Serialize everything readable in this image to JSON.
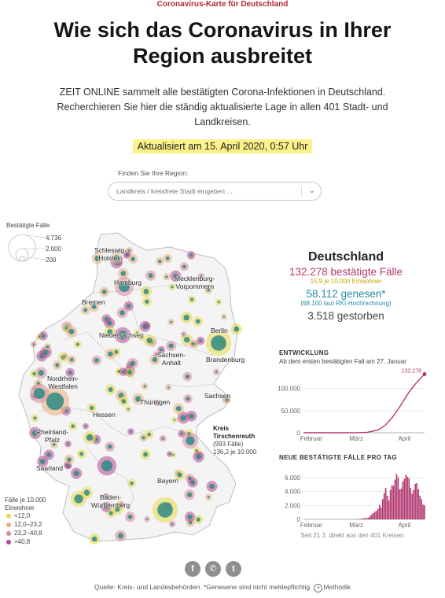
{
  "kicker": "Coronavirus-Karte für Deutschland",
  "headline": {
    "line1": "Wie sich das Coronavirus in Ihrer",
    "line2": "Region ausbreitet"
  },
  "intro": {
    "line1": "ZEIT ONLINE sammelt alle bestätigten Corona-Infektionen in Deutschland.",
    "line2": "Recherchieren Sie hier die ständig aktualisierte Lage in allen 401 Stadt- und",
    "line3": "Landkreisen."
  },
  "updated": "Aktualisiert am 15. April 2020, 0:57 Uhr",
  "search": {
    "label": "Finden Sie Ihre Region:",
    "placeholder": "Landkreis / kreisfreie Stadt eingeben ...",
    "chevron_icon": "chevron-down-icon"
  },
  "size_legend": {
    "title": "Bestätigte Fälle",
    "values": [
      "4.736",
      "2.000",
      "200"
    ]
  },
  "states": [
    {
      "name": "Schleswig-",
      "name2": "Holstein"
    },
    {
      "name": "Hamburg"
    },
    {
      "name": "Mecklenburg-",
      "name2": "Vorpommern"
    },
    {
      "name": "Bremen"
    },
    {
      "name": "Berlin"
    },
    {
      "name": "Niedersachsen"
    },
    {
      "name": "Sachsen-",
      "name2": "Anhalt"
    },
    {
      "name": "Brandenburg"
    },
    {
      "name": "Nordrhein-",
      "name2": "Westfalen"
    },
    {
      "name": "Sachsen"
    },
    {
      "name": "Hessen"
    },
    {
      "name": "Thüringen"
    },
    {
      "name": "Rheinland-",
      "name2": "Pfalz"
    },
    {
      "name": "Saarland"
    },
    {
      "name": "Bayern"
    },
    {
      "name": "Baden-",
      "name2": "Württemberg"
    }
  ],
  "callout": {
    "title1": "Kreis",
    "title2": "Tirschenreuth",
    "cases": "(993 Fälle)",
    "rate": "136,2 je 10.000"
  },
  "color_legend": {
    "title1": "Fälle je 10.000",
    "title2": "Einwohner",
    "items": [
      {
        "label": "<12,0",
        "color": "#e8d84a"
      },
      {
        "label": "12,0–23,2",
        "color": "#e8b080"
      },
      {
        "label": "23,2–40,8",
        "color": "#d88aa0"
      },
      {
        "label": ">40,8",
        "color": "#b8478f"
      }
    ]
  },
  "stats": {
    "country": "Deutschland",
    "cases": "132.278 bestätigte Fälle",
    "cases_sub": "15,9  je 10.000 Einwohner",
    "recovered": "58.112 genesen*",
    "recovered_sub": "(68.100  laut RKI-Hochrechnung)",
    "deaths": "3.518 gestorben"
  },
  "chart_data": [
    {
      "type": "line",
      "title": "ENTWICKLUNG",
      "subtitle": "Ab dem ersten bestätigten Fall am 27. Januar",
      "x": [
        "2020-01-27",
        "2020-02-15",
        "2020-03-01",
        "2020-03-08",
        "2020-03-15",
        "2020-03-20",
        "2020-03-25",
        "2020-03-30",
        "2020-04-04",
        "2020-04-09",
        "2020-04-14"
      ],
      "series": [
        {
          "values": [
            1,
            16,
            150,
            1100,
            6000,
            18000,
            38000,
            64000,
            92000,
            114000,
            132278
          ]
        }
      ],
      "ylim": [
        0,
        135000
      ],
      "yticks": [
        "100.000",
        "50.000",
        "0"
      ],
      "ytick_values": [
        100000,
        50000,
        0
      ],
      "xticks": [
        "Februar",
        "März",
        "April"
      ],
      "end_label": "132.278",
      "color": "#b33771"
    },
    {
      "type": "bar",
      "title": "NEUE BESTÄTIGTE FÄLLE PRO TAG",
      "categories": [
        "2020-03-01",
        "2020-03-02",
        "2020-03-03",
        "2020-03-04",
        "2020-03-05",
        "2020-03-06",
        "2020-03-07",
        "2020-03-08",
        "2020-03-09",
        "2020-03-10",
        "2020-03-11",
        "2020-03-12",
        "2020-03-13",
        "2020-03-14",
        "2020-03-15",
        "2020-03-16",
        "2020-03-17",
        "2020-03-18",
        "2020-03-19",
        "2020-03-20",
        "2020-03-21",
        "2020-03-22",
        "2020-03-23",
        "2020-03-24",
        "2020-03-25",
        "2020-03-26",
        "2020-03-27",
        "2020-03-28",
        "2020-03-29",
        "2020-03-30",
        "2020-03-31",
        "2020-04-01",
        "2020-04-02",
        "2020-04-03",
        "2020-04-04",
        "2020-04-05",
        "2020-04-06",
        "2020-04-07",
        "2020-04-08",
        "2020-04-09",
        "2020-04-10",
        "2020-04-11",
        "2020-04-12",
        "2020-04-13",
        "2020-04-14"
      ],
      "values": [
        40,
        30,
        60,
        80,
        110,
        180,
        150,
        200,
        250,
        500,
        700,
        900,
        1100,
        1200,
        1500,
        2100,
        1700,
        2900,
        3800,
        4500,
        3400,
        2700,
        4200,
        4900,
        4800,
        5700,
        6500,
        6000,
        4300,
        4400,
        5400,
        5800,
        6400,
        6100,
        5900,
        4500,
        3700,
        4200,
        5100,
        5200,
        4300,
        3400,
        2900,
        2100,
        2000
      ],
      "ylim": [
        0,
        7000
      ],
      "yticks": [
        "6.000",
        "4.000",
        "2.000",
        "0"
      ],
      "ytick_values": [
        6000,
        4000,
        2000,
        0
      ],
      "xticks": [
        "Februar",
        "März",
        "April"
      ],
      "note": "Seit 21.3. direkt aus den 401 Kreisen",
      "color": "#b33771"
    }
  ],
  "share": {
    "facebook_label": "f",
    "whatsapp_label": "✆",
    "twitter_label": "t"
  },
  "footer": {
    "text": "Quelle: Kreis- und Landesbehörden. *Genesene sind nicht meldepflichtig",
    "link": "Methodik"
  }
}
